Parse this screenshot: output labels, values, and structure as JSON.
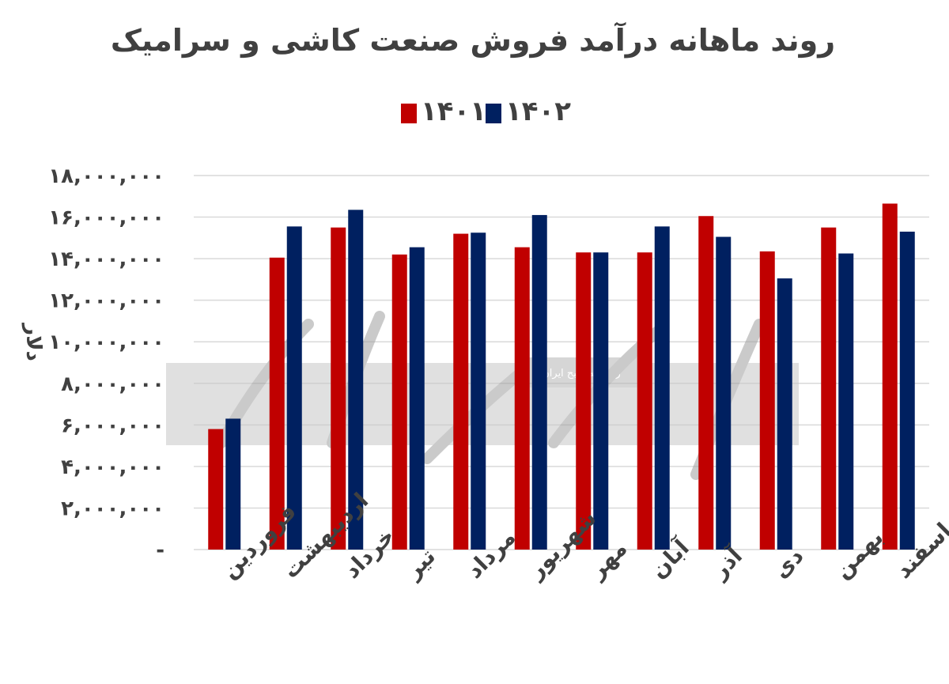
{
  "chart_data": {
    "type": "bar",
    "title": "روند ماهانه درآمد فروش صنعت کاشی و سرامیک",
    "ylabel": "دلار",
    "xlabel": "",
    "ylim": [
      0,
      18000000
    ],
    "y_ticks": [
      "-",
      "۲,۰۰۰,۰۰۰",
      "۴,۰۰۰,۰۰۰",
      "۶,۰۰۰,۰۰۰",
      "۸,۰۰۰,۰۰۰",
      "۱۰,۰۰۰,۰۰۰",
      "۱۲,۰۰۰,۰۰۰",
      "۱۴,۰۰۰,۰۰۰",
      "۱۶,۰۰۰,۰۰۰",
      "۱۸,۰۰۰,۰۰۰"
    ],
    "grid": true,
    "legend_position": "top",
    "categories": [
      "فروردین",
      "اردیبهشت",
      "خرداد",
      "تیر",
      "مرداد",
      "شهریور",
      "مهر",
      "آبان",
      "آذر",
      "دی",
      "بهمن",
      "اسفند"
    ],
    "series": [
      {
        "name": "۱۴۰۱",
        "color": "#c00000",
        "values": [
          5800000,
          14050000,
          15500000,
          14200000,
          15200000,
          14550000,
          14300000,
          14300000,
          16050000,
          14350000,
          15500000,
          16650000
        ]
      },
      {
        "name": "۱۴۰۲",
        "color": "#002060",
        "values": [
          6300000,
          15550000,
          16350000,
          14550000,
          15250000,
          16100000,
          14300000,
          15550000,
          15050000,
          13050000,
          14250000,
          15300000
        ]
      }
    ]
  },
  "watermark": {
    "logo_text": "دنیای اقتصاد",
    "caption": "روزنامه صبح ایران"
  }
}
